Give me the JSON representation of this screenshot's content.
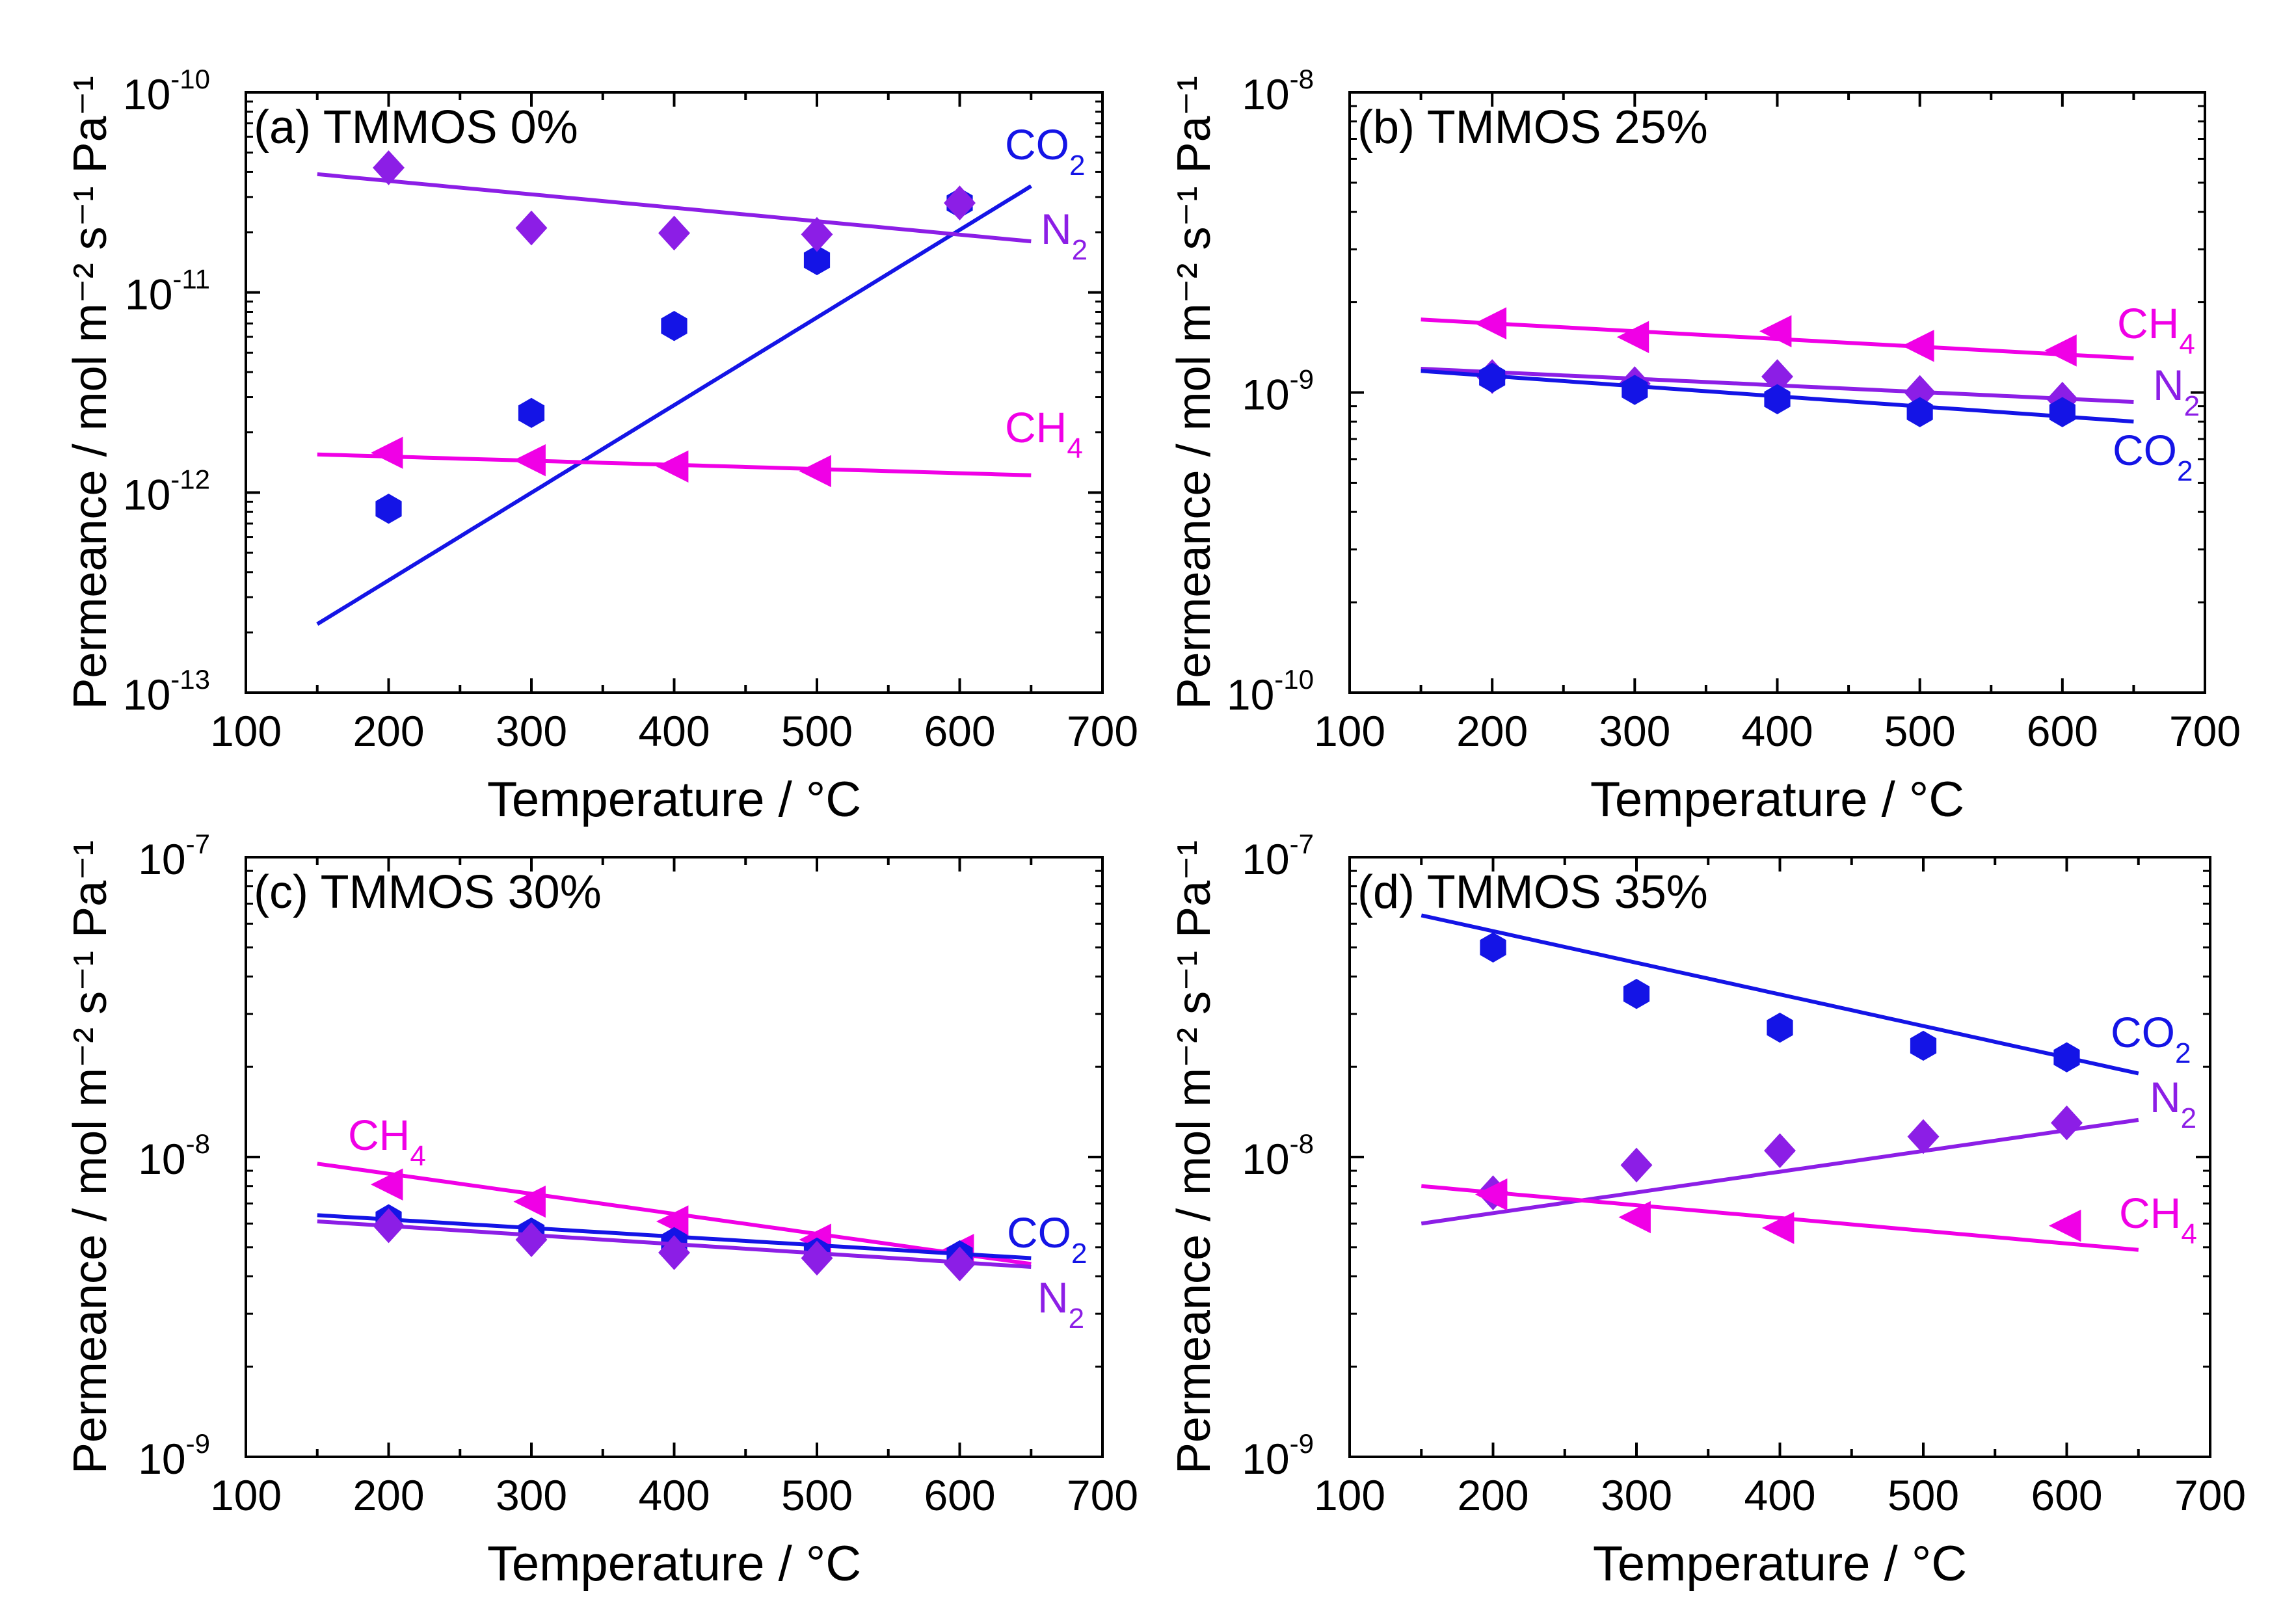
{
  "chart_data": [
    {
      "type": "scatter",
      "title": "(a) TMMOS 0%",
      "xlabel": "Temperature / °C",
      "ylabel": "Permeance / mol m⁻² s⁻¹ Pa⁻¹",
      "xlim": [
        100,
        700
      ],
      "ylim_log10": [
        -13,
        -10
      ],
      "xticks": [
        "100",
        "200",
        "300",
        "400",
        "500",
        "600",
        "700"
      ],
      "yticks": [
        {
          "base": "10",
          "exp": "-13"
        },
        {
          "base": "10",
          "exp": "-12"
        },
        {
          "base": "10",
          "exp": "-11"
        },
        {
          "base": "10",
          "exp": "-10"
        }
      ],
      "series": [
        {
          "name": "CO2",
          "label": "CO",
          "sub": "2",
          "marker": "hexagon",
          "color": "#1414e6",
          "x": [
            200,
            300,
            400,
            500,
            600
          ],
          "y": [
            8.3e-13,
            2.5e-12,
            6.8e-12,
            1.45e-11,
            2.8e-11
          ],
          "fit_x": [
            150,
            650
          ],
          "fit_y": [
            2.2e-13,
            3.4e-11
          ]
        },
        {
          "name": "N2",
          "label": "N",
          "sub": "2",
          "marker": "diamond",
          "color": "#8c1ee6",
          "x": [
            200,
            300,
            400,
            500,
            600
          ],
          "y": [
            4.2e-11,
            2.1e-11,
            1.98e-11,
            1.95e-11,
            2.8e-11
          ],
          "fit_x": [
            150,
            650
          ],
          "fit_y": [
            3.9e-11,
            1.8e-11
          ]
        },
        {
          "name": "CH4",
          "label": "CH",
          "sub": "4",
          "marker": "triangle-left",
          "color": "#f000e6",
          "x": [
            200,
            300,
            400,
            500
          ],
          "y": [
            1.58e-12,
            1.45e-12,
            1.35e-12,
            1.28e-12
          ],
          "fit_x": [
            150,
            650
          ],
          "fit_y": [
            1.55e-12,
            1.22e-12
          ]
        }
      ]
    },
    {
      "type": "scatter",
      "title": "(b) TMMOS 25%",
      "xlabel": "Temperature / °C",
      "ylabel": "Permeance / mol m⁻² s⁻¹ Pa⁻¹",
      "xlim": [
        100,
        700
      ],
      "ylim_log10": [
        -10,
        -8
      ],
      "xticks": [
        "100",
        "200",
        "300",
        "400",
        "500",
        "600",
        "700"
      ],
      "yticks": [
        {
          "base": "10",
          "exp": "-10"
        },
        {
          "base": "10",
          "exp": "-9"
        },
        {
          "base": "10",
          "exp": "-8"
        }
      ],
      "series": [
        {
          "name": "CH4",
          "label": "CH",
          "sub": "4",
          "marker": "triangle-left",
          "color": "#f000e6",
          "x": [
            200,
            300,
            400,
            500,
            600
          ],
          "y": [
            1.7e-09,
            1.53e-09,
            1.6e-09,
            1.43e-09,
            1.38e-09
          ],
          "fit_x": [
            150,
            650
          ],
          "fit_y": [
            1.75e-09,
            1.3e-09
          ]
        },
        {
          "name": "N2",
          "label": "N",
          "sub": "2",
          "marker": "diamond",
          "color": "#8c1ee6",
          "x": [
            200,
            300,
            400,
            500,
            600
          ],
          "y": [
            1.13e-09,
            1.07e-09,
            1.13e-09,
            1e-09,
            9.5e-10
          ],
          "fit_x": [
            150,
            650
          ],
          "fit_y": [
            1.2e-09,
            9.3e-10
          ]
        },
        {
          "name": "CO2",
          "label": "CO",
          "sub": "2",
          "marker": "hexagon",
          "color": "#1414e6",
          "x": [
            200,
            300,
            400,
            500,
            600
          ],
          "y": [
            1.12e-09,
            1.02e-09,
            9.5e-10,
            8.6e-10,
            8.6e-10
          ],
          "fit_x": [
            150,
            650
          ],
          "fit_y": [
            1.18e-09,
            8e-10
          ]
        }
      ]
    },
    {
      "type": "scatter",
      "title": "(c) TMMOS 30%",
      "xlabel": "Temperature / °C",
      "ylabel": "Permeance / mol m⁻² s⁻¹ Pa⁻¹",
      "xlim": [
        100,
        700
      ],
      "ylim_log10": [
        -9,
        -7
      ],
      "xticks": [
        "100",
        "200",
        "300",
        "400",
        "500",
        "600",
        "700"
      ],
      "yticks": [
        {
          "base": "10",
          "exp": "-9"
        },
        {
          "base": "10",
          "exp": "-8"
        },
        {
          "base": "10",
          "exp": "-7"
        }
      ],
      "series": [
        {
          "name": "CH4",
          "label": "CH",
          "sub": "4",
          "marker": "triangle-left",
          "color": "#f000e6",
          "x": [
            200,
            300,
            400,
            500,
            600
          ],
          "y": [
            8.1e-09,
            7.1e-09,
            6.1e-09,
            5.3e-09,
            4.9e-09
          ],
          "fit_x": [
            150,
            650
          ],
          "fit_y": [
            9.5e-09,
            4.4e-09
          ]
        },
        {
          "name": "CO2",
          "label": "CO",
          "sub": "2",
          "marker": "hexagon",
          "color": "#1414e6",
          "x": [
            200,
            300,
            400,
            500,
            600
          ],
          "y": [
            6.2e-09,
            5.6e-09,
            5.2e-09,
            4.8e-09,
            4.7e-09
          ],
          "fit_x": [
            150,
            650
          ],
          "fit_y": [
            6.4e-09,
            4.6e-09
          ]
        },
        {
          "name": "N2",
          "label": "N",
          "sub": "2",
          "marker": "diamond",
          "color": "#8c1ee6",
          "x": [
            200,
            300,
            400,
            500,
            600
          ],
          "y": [
            5.9e-09,
            5.3e-09,
            4.8e-09,
            4.6e-09,
            4.4e-09
          ],
          "fit_x": [
            150,
            650
          ],
          "fit_y": [
            6.1e-09,
            4.3e-09
          ]
        }
      ]
    },
    {
      "type": "scatter",
      "title": "(d) TMMOS 35%",
      "xlabel": "Temperature / °C",
      "ylabel": "Permeance / mol m⁻² s⁻¹ Pa⁻¹",
      "xlim": [
        100,
        700
      ],
      "ylim_log10": [
        -9,
        -7
      ],
      "xticks": [
        "100",
        "200",
        "300",
        "400",
        "500",
        "600",
        "700"
      ],
      "yticks": [
        {
          "base": "10",
          "exp": "-9"
        },
        {
          "base": "10",
          "exp": "-8"
        },
        {
          "base": "10",
          "exp": "-7"
        }
      ],
      "series": [
        {
          "name": "CO2",
          "label": "CO",
          "sub": "2",
          "marker": "hexagon",
          "color": "#1414e6",
          "x": [
            200,
            300,
            400,
            500,
            600
          ],
          "y": [
            5e-08,
            3.5e-08,
            2.7e-08,
            2.35e-08,
            2.15e-08
          ],
          "fit_x": [
            150,
            650
          ],
          "fit_y": [
            6.4e-08,
            1.9e-08
          ]
        },
        {
          "name": "N2",
          "label": "N",
          "sub": "2",
          "marker": "diamond",
          "color": "#8c1ee6",
          "x": [
            200,
            300,
            400,
            500,
            600
          ],
          "y": [
            7.6e-09,
            9.4e-09,
            1.05e-08,
            1.17e-08,
            1.3e-08
          ],
          "fit_x": [
            150,
            650
          ],
          "fit_y": [
            6e-09,
            1.33e-08
          ]
        },
        {
          "name": "CH4",
          "label": "CH",
          "sub": "4",
          "marker": "triangle-left",
          "color": "#f000e6",
          "x": [
            200,
            300,
            400,
            600
          ],
          "y": [
            7.5e-09,
            6.3e-09,
            5.8e-09,
            5.9e-09
          ],
          "fit_x": [
            150,
            650
          ],
          "fit_y": [
            8e-09,
            4.9e-09
          ]
        }
      ]
    }
  ]
}
